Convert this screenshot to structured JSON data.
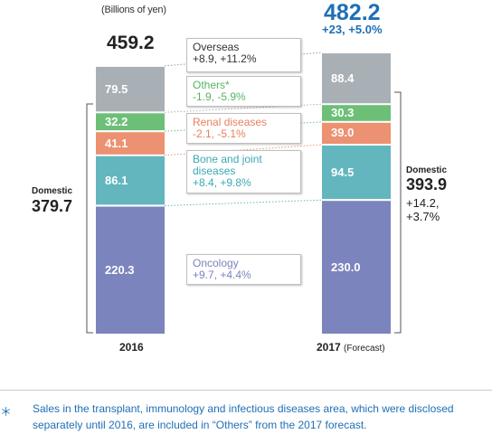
{
  "chart_data": {
    "type": "bar",
    "stacked": true,
    "unit_label": "(Billions of yen)",
    "categories": [
      "2016",
      "2017"
    ],
    "category_notes": [
      "",
      "(Forecast)"
    ],
    "totals": [
      "459.2",
      "482.2"
    ],
    "total_change_2017": "+23, +5.0%",
    "series": [
      {
        "name": "Oncology",
        "values": [
          220.3,
          230.0
        ],
        "labels": [
          "220.3",
          "230.0"
        ],
        "color": "#7b84bc",
        "change": "+9.7, +4.4%",
        "label_color": "#7b84bc"
      },
      {
        "name": "Bone and joint diseases",
        "values": [
          86.1,
          94.5
        ],
        "labels": [
          "86.1",
          "94.5"
        ],
        "color": "#63b6bd",
        "change": "+8.4, +9.8%",
        "label_color": "#3aa9b4"
      },
      {
        "name": "Renal diseases",
        "values": [
          41.1,
          39.0
        ],
        "labels": [
          "41.1",
          "39.0"
        ],
        "color": "#ec9172",
        "change": "-2.1, -5.1%",
        "label_color": "#e8805e"
      },
      {
        "name": "Others*",
        "values": [
          32.2,
          30.3
        ],
        "labels": [
          "32.2",
          "30.3"
        ],
        "color": "#6dbf78",
        "change": "-1.9, -5.9%",
        "label_color": "#56b465"
      },
      {
        "name": "Overseas",
        "values": [
          79.5,
          88.4
        ],
        "labels": [
          "79.5",
          "88.4"
        ],
        "color": "#a9b0b5",
        "change": "+8.9, +11.2%",
        "label_color": "#333333"
      }
    ],
    "domestic": {
      "title": "Domestic",
      "value_2016": "379.7",
      "value_2017": "393.9",
      "change_2017": [
        "+14.2,",
        "+3.7%"
      ]
    }
  },
  "footnote": {
    "mark": "＊",
    "text": "Sales in the transplant, immunology and infectious diseases area, which were disclosed separately until 2016, are included in “Others” from the 2017 forecast."
  }
}
